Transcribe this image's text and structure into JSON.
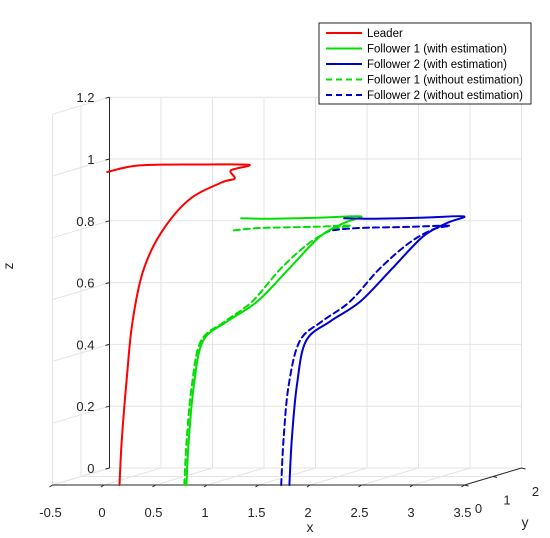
{
  "chart_data": {
    "type": "line",
    "projection": "3d",
    "xlabel": "x",
    "ylabel": "y",
    "zlabel": "z",
    "xlim": [
      -0.5,
      3.5
    ],
    "ylim": [
      0,
      2
    ],
    "zlim": [
      0,
      1.2
    ],
    "x_ticks": [
      "-0.5",
      "0",
      "0.5",
      "1",
      "1.5",
      "2",
      "2.5",
      "3",
      "3.5"
    ],
    "y_ticks": [
      "0",
      "1",
      "2"
    ],
    "z_ticks": [
      "0",
      "0.2",
      "0.4",
      "0.6",
      "0.8",
      "1",
      "1.2"
    ],
    "grid": true,
    "legend_position": "top-right",
    "series": [
      {
        "name": "Leader",
        "color": "#ff0000",
        "style": "solid",
        "points": [
          [
            0.15,
            0.0,
            0.0
          ],
          [
            0.16,
            0.05,
            0.15
          ],
          [
            0.19,
            0.12,
            0.35
          ],
          [
            0.22,
            0.2,
            0.52
          ],
          [
            0.28,
            0.35,
            0.68
          ],
          [
            0.4,
            0.55,
            0.8
          ],
          [
            0.6,
            0.8,
            0.9
          ],
          [
            0.85,
            1.05,
            0.95
          ],
          [
            0.95,
            1.15,
            0.96
          ],
          [
            0.9,
            1.2,
            0.985
          ],
          [
            1.05,
            1.3,
            1.0
          ],
          [
            0.6,
            1.35,
            1.0
          ],
          [
            0.0,
            1.25,
            1.0
          ],
          [
            -0.3,
            1.2,
            0.98
          ]
        ]
      },
      {
        "name": "Follower 1 (with estimation)",
        "color": "#00e000",
        "style": "solid",
        "points": [
          [
            0.8,
            0.0,
            0.0
          ],
          [
            0.81,
            0.05,
            0.15
          ],
          [
            0.84,
            0.12,
            0.32
          ],
          [
            0.9,
            0.22,
            0.46
          ],
          [
            1.1,
            0.35,
            0.52
          ],
          [
            1.35,
            0.5,
            0.58
          ],
          [
            1.6,
            0.7,
            0.68
          ],
          [
            1.85,
            0.9,
            0.78
          ],
          [
            2.05,
            1.02,
            0.82
          ],
          [
            2.2,
            1.06,
            0.84
          ],
          [
            1.8,
            1.1,
            0.835
          ],
          [
            1.3,
            1.15,
            0.83
          ],
          [
            1.0,
            1.2,
            0.83
          ]
        ]
      },
      {
        "name": "Follower 2 (with estimation)",
        "color": "#0000d0",
        "style": "solid",
        "points": [
          [
            1.8,
            0.0,
            0.0
          ],
          [
            1.81,
            0.05,
            0.15
          ],
          [
            1.84,
            0.12,
            0.32
          ],
          [
            1.9,
            0.22,
            0.46
          ],
          [
            2.1,
            0.35,
            0.52
          ],
          [
            2.35,
            0.5,
            0.58
          ],
          [
            2.6,
            0.7,
            0.68
          ],
          [
            2.85,
            0.9,
            0.78
          ],
          [
            3.05,
            1.02,
            0.82
          ],
          [
            3.2,
            1.06,
            0.84
          ],
          [
            2.8,
            1.1,
            0.835
          ],
          [
            2.3,
            1.15,
            0.83
          ],
          [
            2.0,
            1.2,
            0.83
          ]
        ]
      },
      {
        "name": "Follower 1 (without estimation)",
        "color": "#00e000",
        "style": "dashed",
        "points": [
          [
            0.78,
            0.0,
            0.0
          ],
          [
            0.79,
            0.05,
            0.15
          ],
          [
            0.82,
            0.12,
            0.32
          ],
          [
            0.88,
            0.22,
            0.46
          ],
          [
            1.08,
            0.35,
            0.52
          ],
          [
            1.3,
            0.5,
            0.58
          ],
          [
            1.52,
            0.7,
            0.68
          ],
          [
            1.75,
            0.9,
            0.76
          ],
          [
            1.95,
            1.02,
            0.8
          ],
          [
            2.1,
            1.06,
            0.81
          ],
          [
            1.7,
            1.1,
            0.805
          ],
          [
            1.2,
            1.15,
            0.8
          ],
          [
            0.9,
            1.2,
            0.79
          ]
        ]
      },
      {
        "name": "Follower 2 (without estimation)",
        "color": "#0000d0",
        "style": "dashed",
        "points": [
          [
            1.72,
            0.0,
            0.0
          ],
          [
            1.73,
            0.05,
            0.15
          ],
          [
            1.76,
            0.12,
            0.32
          ],
          [
            1.84,
            0.22,
            0.46
          ],
          [
            2.02,
            0.35,
            0.52
          ],
          [
            2.25,
            0.5,
            0.58
          ],
          [
            2.48,
            0.7,
            0.68
          ],
          [
            2.72,
            0.9,
            0.76
          ],
          [
            2.92,
            1.02,
            0.8
          ],
          [
            3.06,
            1.06,
            0.81
          ],
          [
            2.65,
            1.1,
            0.805
          ],
          [
            2.15,
            1.15,
            0.8
          ],
          [
            1.85,
            1.2,
            0.79
          ]
        ]
      }
    ]
  }
}
